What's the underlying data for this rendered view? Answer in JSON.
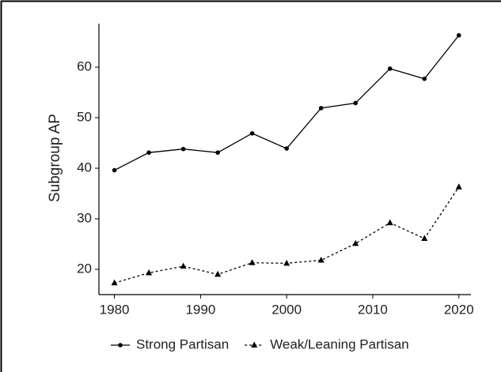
{
  "chart_data": {
    "type": "line",
    "ylabel": "Subgroup AP",
    "x": [
      1980,
      1984,
      1988,
      1992,
      1996,
      2000,
      2004,
      2008,
      2012,
      2016,
      2020
    ],
    "series": [
      {
        "name": "Strong Partisan",
        "color": "#000000",
        "marker": "circle",
        "dashed": false,
        "values": [
          39.6,
          43.1,
          43.8,
          43.1,
          46.9,
          43.9,
          51.9,
          52.9,
          59.7,
          57.7,
          66.3
        ]
      },
      {
        "name": "Weak/Leaning Partisan",
        "color": "#000000",
        "marker": "triangle",
        "dashed": true,
        "values": [
          17.3,
          19.3,
          20.6,
          19.0,
          21.3,
          21.2,
          21.8,
          25.1,
          29.2,
          26.1,
          36.3
        ]
      }
    ],
    "xlim": [
      1978.2,
      2021.4
    ],
    "xticks": [
      1980,
      1990,
      2000,
      2010,
      2020
    ],
    "ylim": [
      15,
      68.6
    ],
    "yticks": [
      20,
      30,
      40,
      50,
      60
    ],
    "grid": false,
    "legend": "bottom"
  }
}
